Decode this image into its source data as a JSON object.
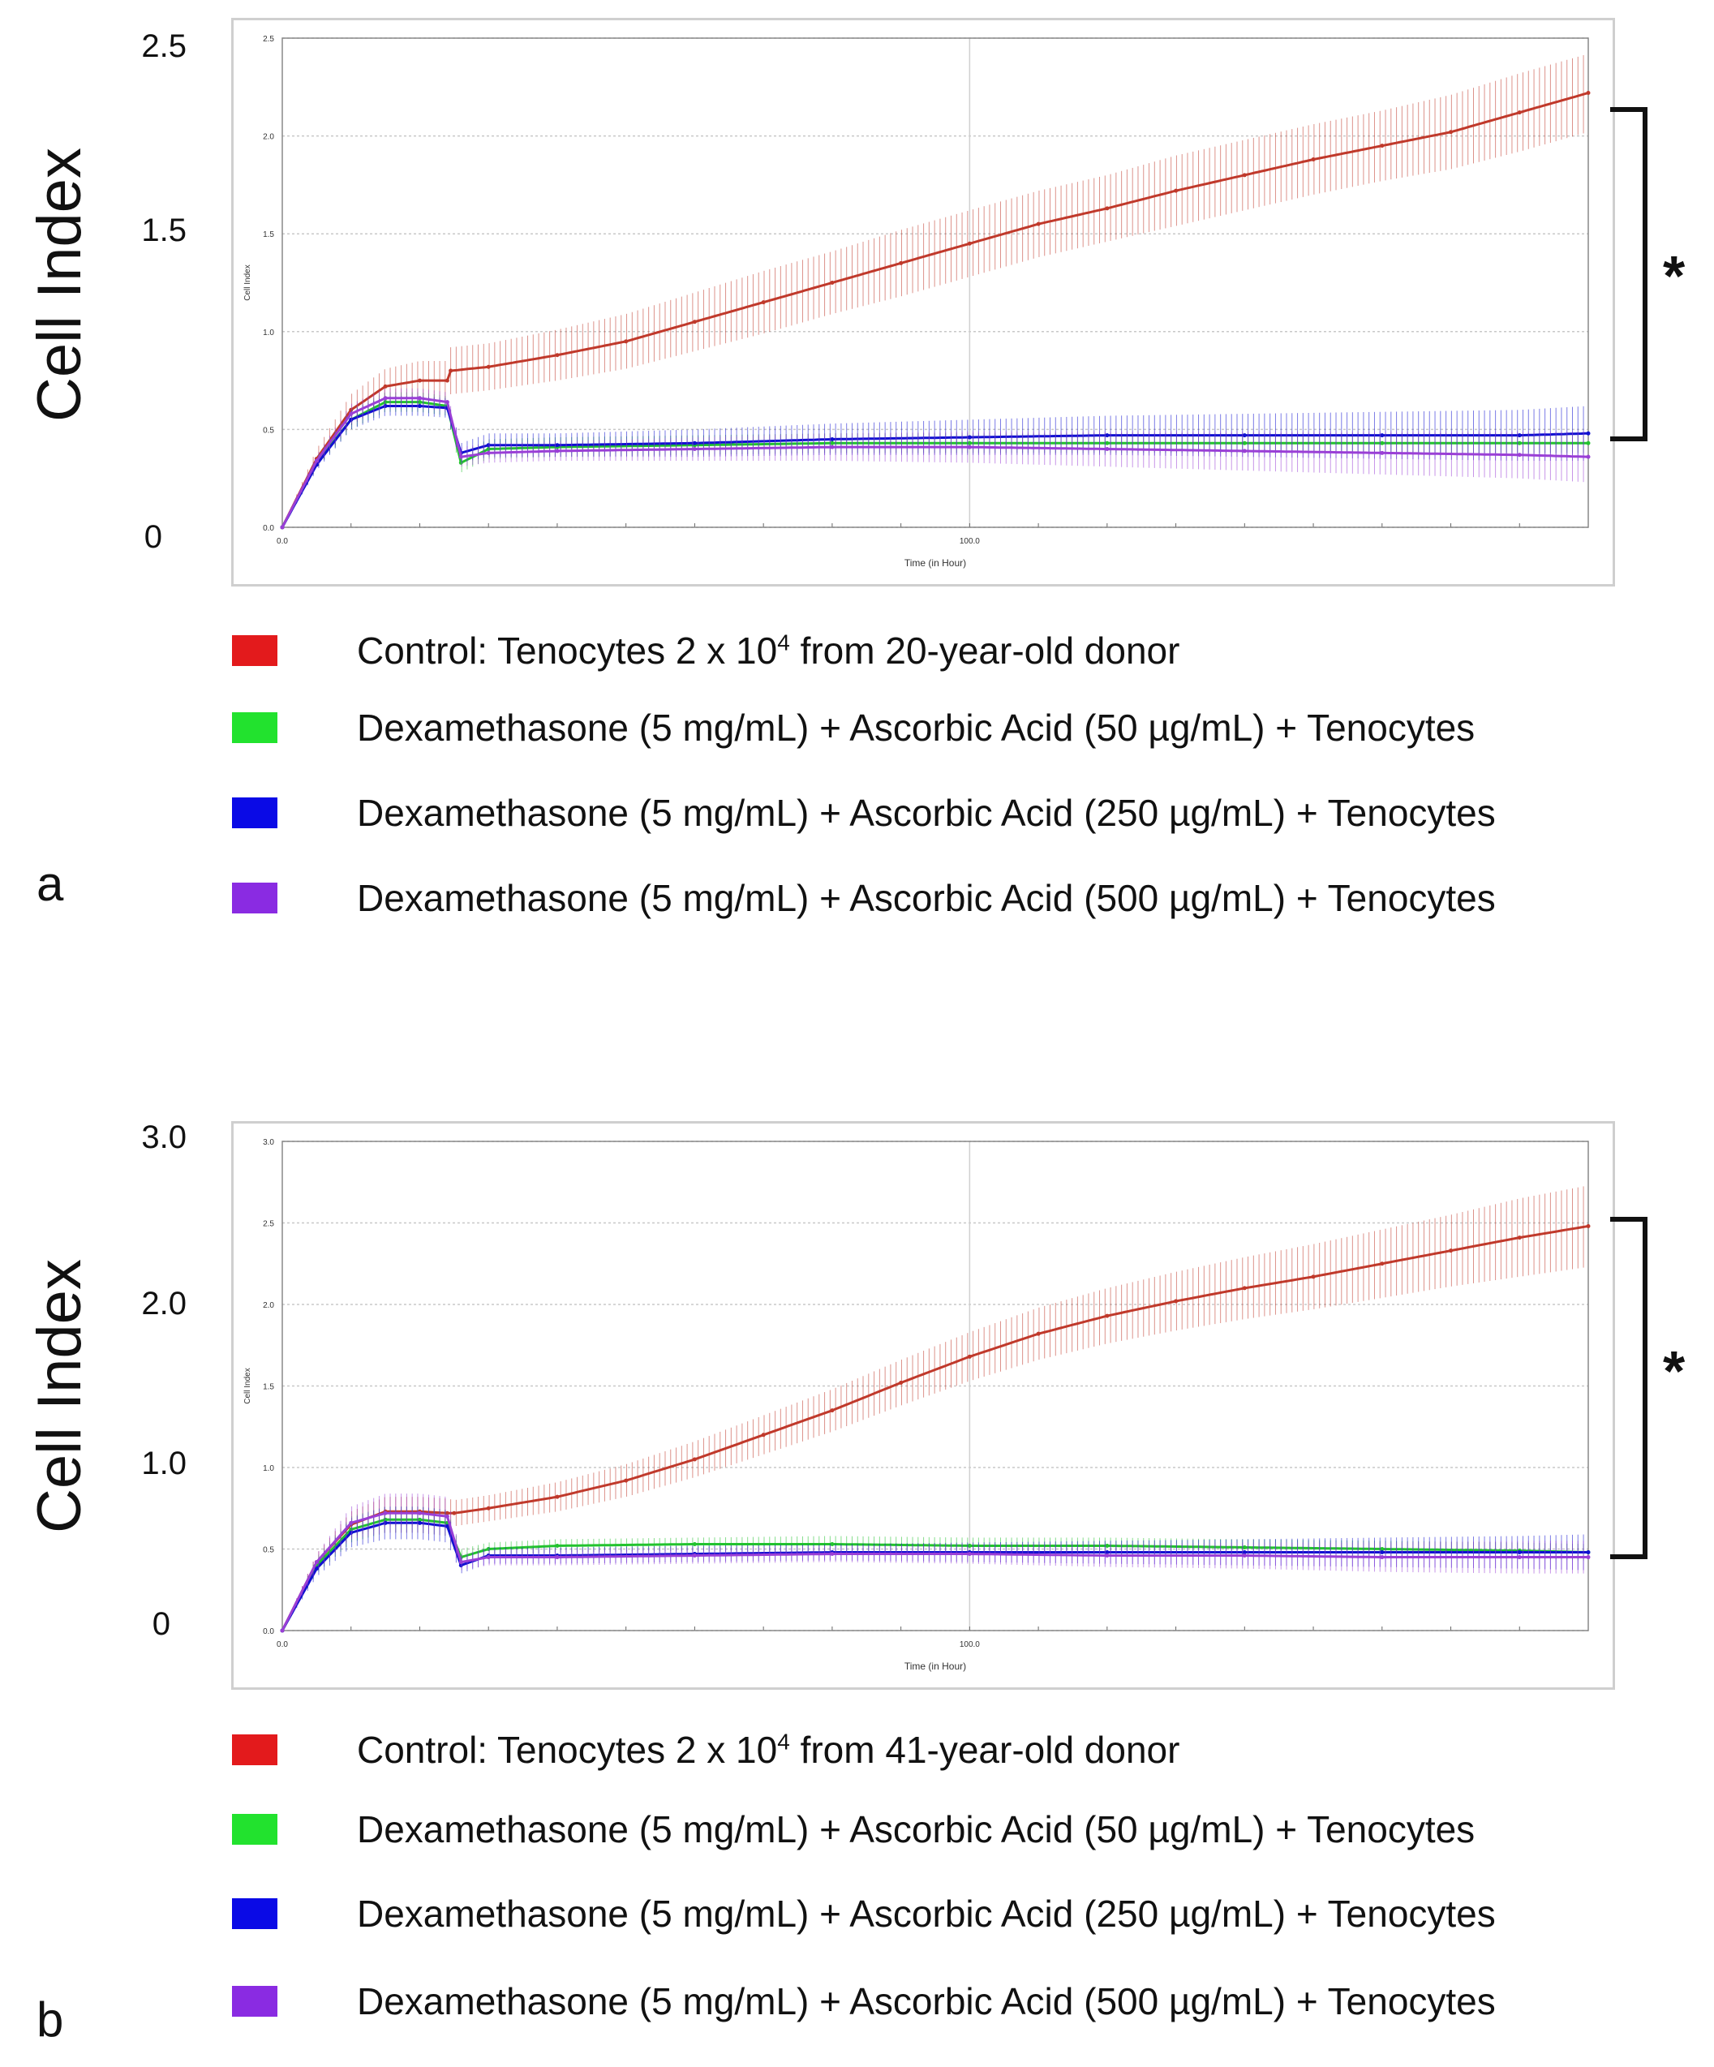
{
  "panels": [
    {
      "letter": "a",
      "ylabel": "Cell Index",
      "significance": "*",
      "y_ticks_big": [
        "2.5",
        "1.5",
        "0"
      ],
      "legend": [
        {
          "color": "#e31a1c",
          "prefix": "Control: Tenocytes 2 x 10",
          "sup": "4",
          "suffix": " from 20-year-old donor"
        },
        {
          "color": "#22e22e",
          "prefix": "Dexamethasone (5 mg/mL) + Ascorbic Acid (50 µg/mL) + Tenocytes",
          "sup": "",
          "suffix": ""
        },
        {
          "color": "#0a0ae6",
          "prefix": "Dexamethasone (5 mg/mL) + Ascorbic Acid (250 µg/mL) + Tenocytes",
          "sup": "",
          "suffix": ""
        },
        {
          "color": "#8a2be2",
          "prefix": "Dexamethasone (5 mg/mL) + Ascorbic Acid (500 µg/mL) + Tenocytes",
          "sup": "",
          "suffix": ""
        }
      ]
    },
    {
      "letter": "b",
      "ylabel": "Cell Index",
      "significance": "*",
      "y_ticks_big": [
        "3.0",
        "2.0",
        "1.0",
        "0"
      ],
      "legend": [
        {
          "color": "#e31a1c",
          "prefix": "Control: Tenocytes 2 x 10",
          "sup": "4",
          "suffix": " from 41-year-old donor"
        },
        {
          "color": "#22e22e",
          "prefix": "Dexamethasone (5 mg/mL) + Ascorbic Acid (50 µg/mL) + Tenocytes",
          "sup": "",
          "suffix": ""
        },
        {
          "color": "#0a0ae6",
          "prefix": "Dexamethasone (5 mg/mL) + Ascorbic Acid (250 µg/mL) + Tenocytes",
          "sup": "",
          "suffix": ""
        },
        {
          "color": "#8a2be2",
          "prefix": "Dexamethasone (5 mg/mL) + Ascorbic Acid (500 µg/mL) + Tenocytes",
          "sup": "",
          "suffix": ""
        }
      ]
    }
  ],
  "chart_data": [
    {
      "type": "line",
      "title": "",
      "xlabel": "Time (in Hour)",
      "ylabel": "Cell Index",
      "xlim": [
        0,
        190
      ],
      "ylim": [
        0,
        2.5
      ],
      "x_ticks": [
        {
          "v": 0,
          "label": "0.0"
        },
        {
          "v": 100,
          "label": "100.0"
        }
      ],
      "y_ticks": [
        {
          "v": 0,
          "label": "0.0"
        },
        {
          "v": 0.5,
          "label": "0.5"
        },
        {
          "v": 1.0,
          "label": "1.0"
        },
        {
          "v": 1.5,
          "label": "1.5"
        },
        {
          "v": 2.0,
          "label": "2.0"
        },
        {
          "v": 2.5,
          "label": "2.5"
        }
      ],
      "error_bars": true,
      "series": [
        {
          "name": "Control: Tenocytes 2 x 10^4 from 20-year-old donor",
          "color": "#c0392b",
          "x": [
            0,
            5,
            10,
            15,
            20,
            24,
            24.5,
            30,
            40,
            50,
            60,
            70,
            80,
            90,
            100,
            110,
            120,
            130,
            140,
            150,
            160,
            170,
            180,
            190
          ],
          "y": [
            0,
            0.35,
            0.6,
            0.72,
            0.75,
            0.75,
            0.8,
            0.82,
            0.88,
            0.95,
            1.05,
            1.15,
            1.25,
            1.35,
            1.45,
            1.55,
            1.63,
            1.72,
            1.8,
            1.88,
            1.95,
            2.02,
            2.12,
            2.22
          ],
          "err": [
            0,
            0.05,
            0.08,
            0.09,
            0.1,
            0.1,
            0.12,
            0.12,
            0.13,
            0.14,
            0.15,
            0.16,
            0.16,
            0.17,
            0.17,
            0.17,
            0.17,
            0.18,
            0.18,
            0.18,
            0.18,
            0.19,
            0.2,
            0.2
          ]
        },
        {
          "name": "Dexamethasone (5 mg/mL) + Ascorbic Acid (50 µg/mL) + Tenocytes",
          "color": "#22c32e",
          "x": [
            0,
            5,
            10,
            15,
            20,
            24,
            26,
            30,
            40,
            60,
            80,
            100,
            120,
            140,
            160,
            180,
            190
          ],
          "y": [
            0,
            0.33,
            0.55,
            0.64,
            0.64,
            0.62,
            0.33,
            0.4,
            0.41,
            0.42,
            0.43,
            0.43,
            0.43,
            0.43,
            0.43,
            0.43,
            0.43
          ],
          "err": [
            0,
            0.03,
            0.05,
            0.05,
            0.05,
            0.05,
            0.05,
            0.05,
            0.05,
            0.05,
            0.05,
            0.05,
            0.05,
            0.05,
            0.05,
            0.05,
            0.05
          ]
        },
        {
          "name": "Dexamethasone (5 mg/mL) + Ascorbic Acid (250 µg/mL) + Tenocytes",
          "color": "#1010d0",
          "x": [
            0,
            5,
            10,
            15,
            20,
            24,
            26,
            30,
            40,
            60,
            80,
            100,
            120,
            140,
            160,
            180,
            190
          ],
          "y": [
            0,
            0.32,
            0.55,
            0.62,
            0.62,
            0.61,
            0.38,
            0.42,
            0.42,
            0.43,
            0.45,
            0.46,
            0.47,
            0.47,
            0.47,
            0.47,
            0.48
          ],
          "err": [
            0,
            0.03,
            0.05,
            0.05,
            0.05,
            0.05,
            0.05,
            0.06,
            0.06,
            0.07,
            0.08,
            0.09,
            0.1,
            0.11,
            0.12,
            0.13,
            0.14
          ]
        },
        {
          "name": "Dexamethasone (5 mg/mL) + Ascorbic Acid (500 µg/mL) + Tenocytes",
          "color": "#9a3fd6",
          "x": [
            0,
            5,
            10,
            15,
            20,
            24,
            26,
            30,
            40,
            60,
            80,
            100,
            120,
            140,
            160,
            180,
            190
          ],
          "y": [
            0,
            0.34,
            0.58,
            0.66,
            0.66,
            0.64,
            0.36,
            0.38,
            0.39,
            0.4,
            0.41,
            0.41,
            0.4,
            0.39,
            0.38,
            0.37,
            0.36
          ],
          "err": [
            0,
            0.03,
            0.05,
            0.05,
            0.05,
            0.05,
            0.05,
            0.05,
            0.05,
            0.06,
            0.07,
            0.08,
            0.09,
            0.1,
            0.11,
            0.12,
            0.13
          ]
        }
      ]
    },
    {
      "type": "line",
      "title": "",
      "xlabel": "Time (in Hour)",
      "ylabel": "Cell Index",
      "xlim": [
        0,
        190
      ],
      "ylim": [
        0,
        3.0
      ],
      "x_ticks": [
        {
          "v": 0,
          "label": "0.0"
        },
        {
          "v": 100,
          "label": "100.0"
        }
      ],
      "y_ticks": [
        {
          "v": 0,
          "label": "0.0"
        },
        {
          "v": 0.5,
          "label": "0.5"
        },
        {
          "v": 1.0,
          "label": "1.0"
        },
        {
          "v": 1.5,
          "label": "1.5"
        },
        {
          "v": 2.0,
          "label": "2.0"
        },
        {
          "v": 2.5,
          "label": "2.5"
        },
        {
          "v": 3.0,
          "label": "3.0"
        }
      ],
      "error_bars": true,
      "series": [
        {
          "name": "Control: Tenocytes 2 x 10^4 from 41-year-old donor",
          "color": "#c0392b",
          "x": [
            0,
            5,
            10,
            15,
            20,
            24,
            25,
            30,
            40,
            50,
            60,
            70,
            80,
            90,
            100,
            110,
            120,
            130,
            140,
            150,
            160,
            170,
            180,
            190
          ],
          "y": [
            0,
            0.42,
            0.65,
            0.73,
            0.73,
            0.72,
            0.72,
            0.75,
            0.82,
            0.92,
            1.05,
            1.2,
            1.35,
            1.52,
            1.68,
            1.82,
            1.93,
            2.02,
            2.1,
            2.17,
            2.25,
            2.33,
            2.41,
            2.48
          ],
          "err": [
            0,
            0.05,
            0.08,
            0.09,
            0.09,
            0.09,
            0.08,
            0.08,
            0.09,
            0.1,
            0.11,
            0.12,
            0.13,
            0.14,
            0.15,
            0.16,
            0.17,
            0.18,
            0.19,
            0.2,
            0.21,
            0.22,
            0.24,
            0.25
          ]
        },
        {
          "name": "Dexamethasone (5 mg/mL) + Ascorbic Acid (50 µg/mL) + Tenocytes",
          "color": "#22c32e",
          "x": [
            0,
            5,
            10,
            15,
            20,
            24,
            26,
            30,
            40,
            60,
            80,
            100,
            120,
            140,
            160,
            180,
            190
          ],
          "y": [
            0,
            0.4,
            0.62,
            0.68,
            0.68,
            0.66,
            0.45,
            0.5,
            0.52,
            0.53,
            0.53,
            0.52,
            0.52,
            0.51,
            0.5,
            0.49,
            0.48
          ],
          "err": [
            0,
            0.05,
            0.08,
            0.08,
            0.08,
            0.08,
            0.05,
            0.04,
            0.04,
            0.04,
            0.05,
            0.05,
            0.05,
            0.05,
            0.05,
            0.05,
            0.05
          ]
        },
        {
          "name": "Dexamethasone (5 mg/mL) + Ascorbic Acid (250 µg/mL) + Tenocytes",
          "color": "#1010d0",
          "x": [
            0,
            5,
            10,
            15,
            20,
            24,
            26,
            30,
            40,
            60,
            80,
            100,
            120,
            140,
            160,
            180,
            190
          ],
          "y": [
            0,
            0.38,
            0.6,
            0.66,
            0.66,
            0.64,
            0.4,
            0.46,
            0.46,
            0.47,
            0.48,
            0.48,
            0.48,
            0.48,
            0.48,
            0.48,
            0.48
          ],
          "err": [
            0,
            0.05,
            0.09,
            0.1,
            0.1,
            0.1,
            0.05,
            0.05,
            0.05,
            0.05,
            0.05,
            0.06,
            0.07,
            0.08,
            0.09,
            0.1,
            0.11
          ]
        },
        {
          "name": "Dexamethasone (5 mg/mL) + Ascorbic Acid (500 µg/mL) + Tenocytes",
          "color": "#9a3fd6",
          "x": [
            0,
            5,
            10,
            15,
            20,
            24,
            26,
            30,
            40,
            60,
            80,
            100,
            120,
            140,
            160,
            180,
            190
          ],
          "y": [
            0,
            0.42,
            0.66,
            0.72,
            0.72,
            0.7,
            0.42,
            0.45,
            0.45,
            0.46,
            0.47,
            0.47,
            0.46,
            0.46,
            0.45,
            0.45,
            0.45
          ],
          "err": [
            0,
            0.05,
            0.1,
            0.12,
            0.12,
            0.12,
            0.05,
            0.05,
            0.05,
            0.05,
            0.05,
            0.06,
            0.07,
            0.08,
            0.09,
            0.1,
            0.1
          ]
        }
      ]
    }
  ]
}
